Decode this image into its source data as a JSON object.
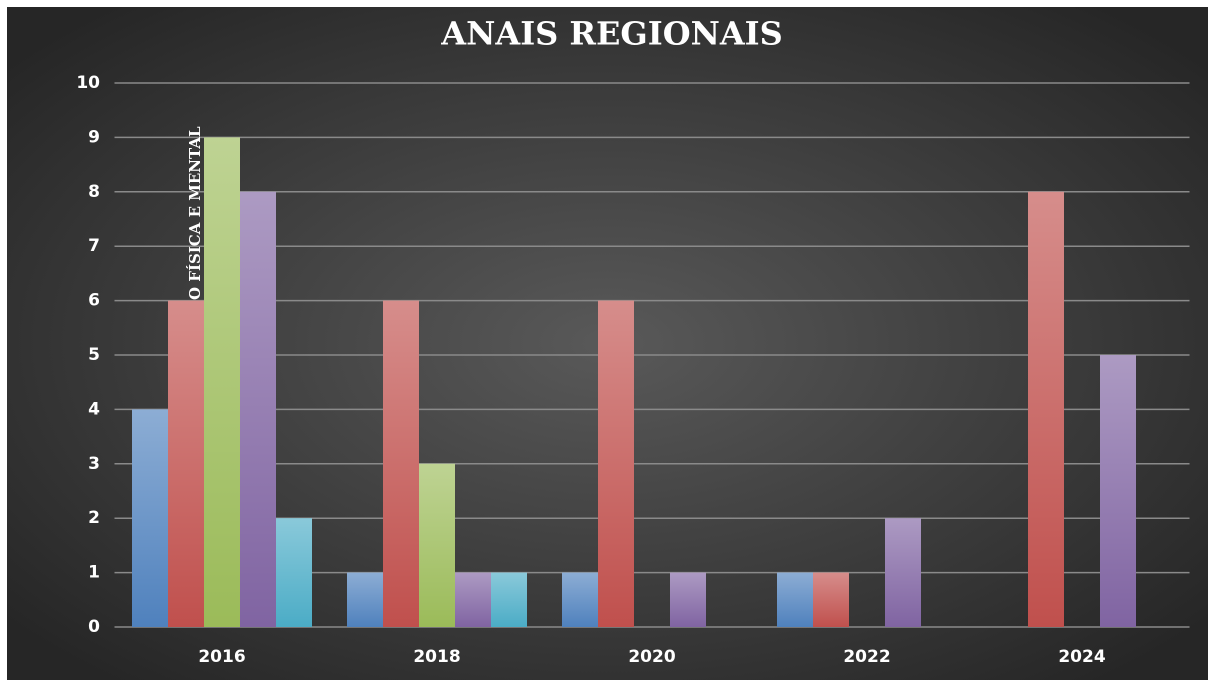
{
  "chart_data": {
    "type": "bar",
    "title": "ANAIS REGIONAIS",
    "annotation": "O FÍSICA E MENTAL",
    "categories": [
      "2016",
      "2018",
      "2020",
      "2022",
      "2024"
    ],
    "series": [
      {
        "color": "#4f81bd",
        "values": [
          4,
          1,
          1,
          1,
          null
        ]
      },
      {
        "color": "#c0504d",
        "values": [
          6,
          6,
          6,
          1,
          8
        ]
      },
      {
        "color": "#9bbb59",
        "values": [
          9,
          3,
          null,
          null,
          null
        ]
      },
      {
        "color": "#8064a2",
        "values": [
          8,
          1,
          1,
          2,
          5
        ]
      },
      {
        "color": "#4bacc6",
        "values": [
          2,
          1,
          null,
          null,
          null
        ]
      }
    ],
    "ylim": [
      0,
      10
    ],
    "yticks": [
      0,
      1,
      2,
      3,
      4,
      5,
      6,
      7,
      8,
      9,
      10
    ],
    "grid": true
  }
}
